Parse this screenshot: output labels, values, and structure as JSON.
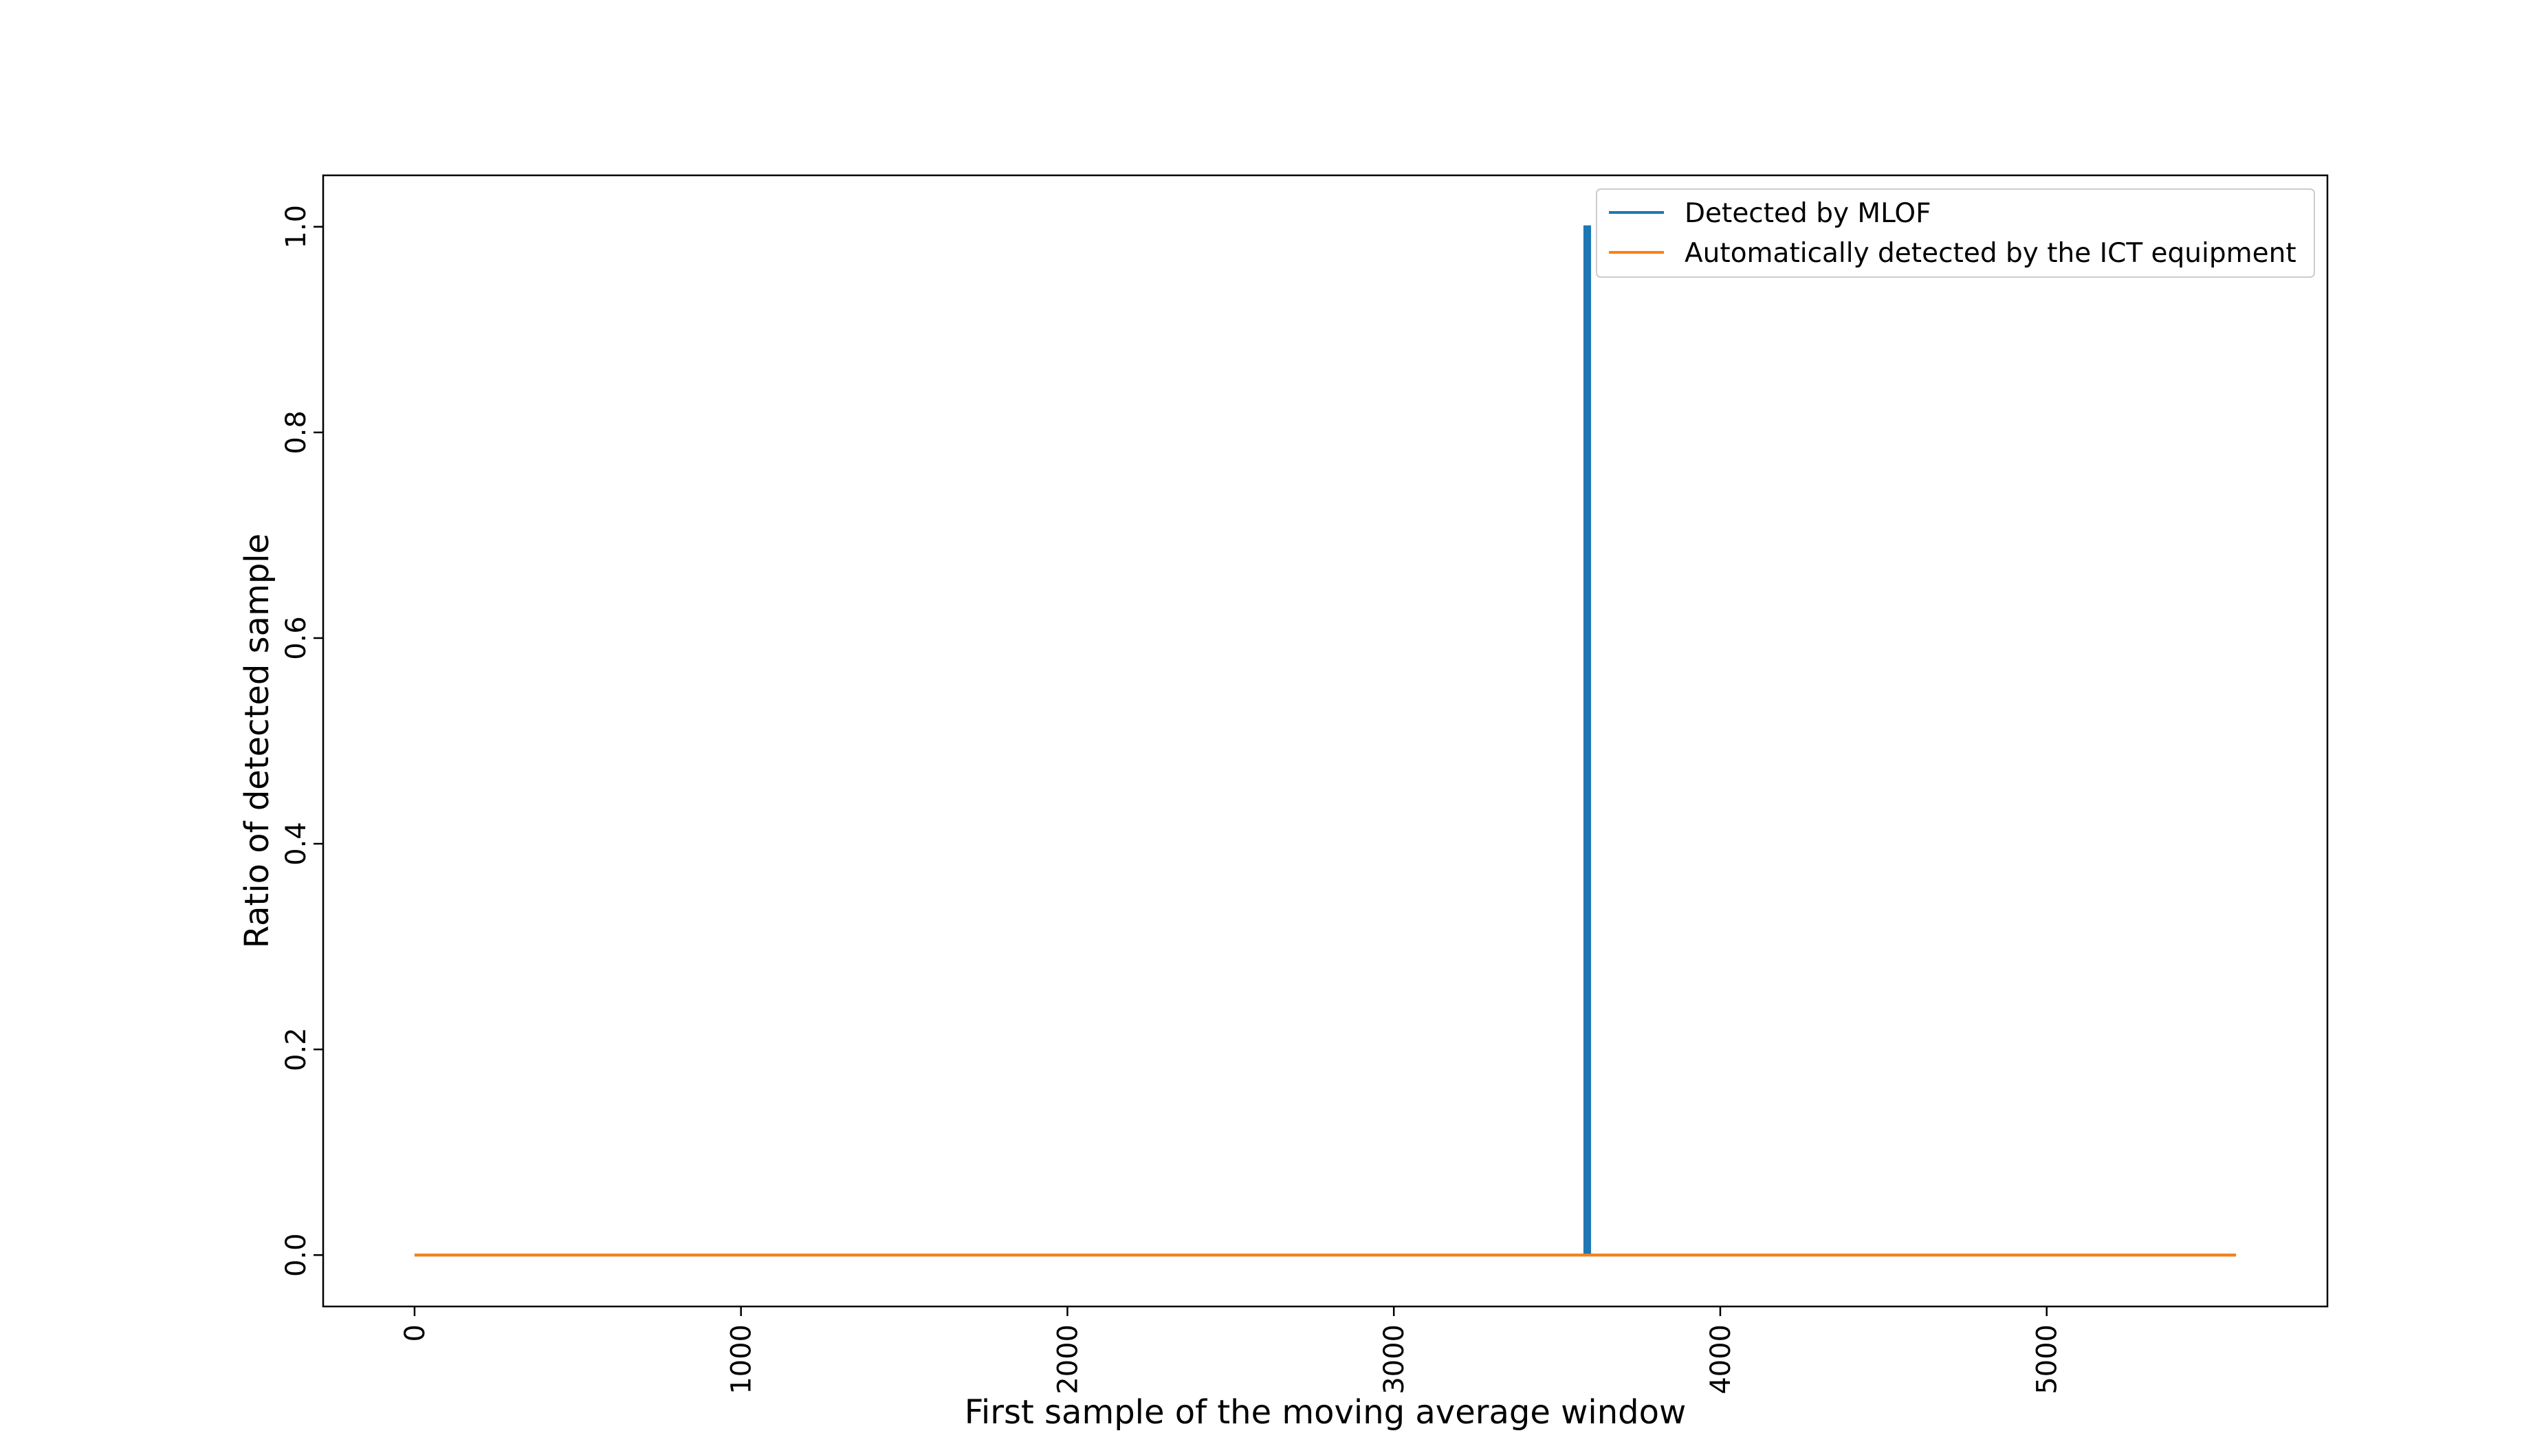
{
  "chart_data": {
    "type": "line",
    "title": "",
    "xlabel": "First sample of the moving average window",
    "ylabel": "Ratio of detected sample",
    "xlim": [
      -280,
      5860
    ],
    "ylim": [
      -0.05,
      1.05
    ],
    "xticks": [
      0,
      1000,
      2000,
      3000,
      4000,
      5000
    ],
    "yticks": [
      0.0,
      0.2,
      0.4,
      0.6,
      0.8,
      1.0
    ],
    "xtick_labels": [
      "0",
      "1000",
      "2000",
      "3000",
      "4000",
      "5000"
    ],
    "ytick_labels": [
      "0.0",
      "0.2",
      "0.4",
      "0.6",
      "0.8",
      "1.0"
    ],
    "grid": false,
    "legend_position": "top-right",
    "series": [
      {
        "name": "Detected by MLOF",
        "color": "#1f77b4",
        "x": [
          0,
          3585,
          3585,
          3600,
          3600,
          5580
        ],
        "y": [
          0,
          0,
          1,
          1,
          0,
          0
        ],
        "note_fill_region": [
          3585,
          3600
        ]
      },
      {
        "name": "Automatically detected by the ICT equipment",
        "color": "#ff7f0e",
        "x": [
          0,
          5580
        ],
        "y": [
          0,
          0
        ]
      }
    ]
  }
}
